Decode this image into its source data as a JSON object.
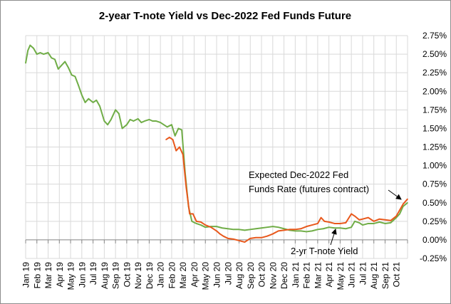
{
  "chart_data": {
    "type": "line",
    "title": "2-year T-note Yield vs Dec-2022 Fed Funds Future",
    "xlabel": "",
    "ylabel": "",
    "ylim": [
      -0.25,
      2.75
    ],
    "y_ticks": [
      "2.75%",
      "2.50%",
      "2.25%",
      "2.00%",
      "1.75%",
      "1.50%",
      "1.25%",
      "1.00%",
      "0.75%",
      "0.50%",
      "0.25%",
      "0.00%",
      "-0.25%"
    ],
    "y_tick_values": [
      2.75,
      2.5,
      2.25,
      2.0,
      1.75,
      1.5,
      1.25,
      1.0,
      0.75,
      0.5,
      0.25,
      0.0,
      -0.25
    ],
    "x_ticks": [
      "Jan 19",
      "Feb 19",
      "Mar 19",
      "Apr 19",
      "May 19",
      "Jun 19",
      "Jul 19",
      "Aug 19",
      "Sep 19",
      "Oct 19",
      "Nov 19",
      "Dec 19",
      "Jan 20",
      "Feb 20",
      "Mar 20",
      "Apr 20",
      "May 20",
      "Jun 20",
      "Jul 20",
      "Aug 20",
      "Sep 20",
      "Oct 20",
      "Nov 20",
      "Dec 20",
      "Jan 21",
      "Feb 21",
      "Mar 21",
      "Apr 21",
      "May 21",
      "Jun 21",
      "Jul 21",
      "Aug 21",
      "Sep 21",
      "Oct 21"
    ],
    "x_unit": "months since Jan 2019",
    "grid": true,
    "series": [
      {
        "name": "2-yr T-note Yield",
        "color": "#70ad47",
        "x": [
          0,
          0.2,
          0.4,
          0.7,
          1,
          1.3,
          1.6,
          2,
          2.3,
          2.6,
          2.9,
          3.2,
          3.5,
          3.8,
          4.1,
          4.4,
          4.7,
          5,
          5.3,
          5.6,
          6,
          6.3,
          6.6,
          7,
          7.3,
          7.6,
          8,
          8.3,
          8.6,
          9,
          9.3,
          9.6,
          10,
          10.3,
          10.6,
          11,
          11.3,
          11.6,
          12,
          12.3,
          12.6,
          13,
          13.3,
          13.6,
          13.9,
          14.2,
          14.5,
          14.8,
          15.2,
          15.6,
          16,
          16.5,
          17,
          17.5,
          18,
          18.5,
          19,
          19.5,
          20,
          20.5,
          21,
          21.5,
          22,
          22.5,
          23,
          23.5,
          24,
          24.5,
          25,
          25.5,
          26,
          26.5,
          27,
          27.5,
          28,
          28.5,
          29,
          29.3,
          29.7,
          30,
          30.5,
          31,
          31.5,
          32,
          32.5,
          33,
          33.3,
          33.6,
          34
        ],
        "values": [
          2.38,
          2.55,
          2.62,
          2.58,
          2.5,
          2.52,
          2.5,
          2.52,
          2.45,
          2.43,
          2.3,
          2.35,
          2.4,
          2.32,
          2.22,
          2.2,
          2.08,
          1.95,
          1.85,
          1.9,
          1.85,
          1.88,
          1.8,
          1.6,
          1.55,
          1.62,
          1.75,
          1.7,
          1.5,
          1.55,
          1.62,
          1.6,
          1.63,
          1.58,
          1.6,
          1.62,
          1.6,
          1.6,
          1.58,
          1.55,
          1.52,
          1.55,
          1.4,
          1.5,
          1.48,
          0.9,
          0.45,
          0.25,
          0.22,
          0.2,
          0.17,
          0.18,
          0.18,
          0.16,
          0.15,
          0.14,
          0.14,
          0.13,
          0.14,
          0.15,
          0.16,
          0.17,
          0.18,
          0.17,
          0.15,
          0.13,
          0.12,
          0.12,
          0.11,
          0.12,
          0.14,
          0.15,
          0.17,
          0.16,
          0.16,
          0.15,
          0.17,
          0.25,
          0.23,
          0.2,
          0.22,
          0.22,
          0.24,
          0.22,
          0.23,
          0.3,
          0.35,
          0.45,
          0.5
        ]
      },
      {
        "name": "Expected Dec-2022 Fed Funds Rate (futures contract)",
        "color": "#e8581c",
        "x": [
          12.5,
          12.8,
          13.1,
          13.4,
          13.7,
          14,
          14.3,
          14.6,
          14.9,
          15.2,
          15.6,
          16,
          16.5,
          17,
          17.3,
          17.6,
          18,
          18.5,
          19,
          19.5,
          20,
          20.5,
          21,
          21.5,
          22,
          22.5,
          23,
          23.5,
          24,
          24.5,
          25,
          25.5,
          26,
          26.3,
          26.6,
          27,
          27.5,
          28,
          28.5,
          29,
          29.3,
          29.7,
          30,
          30.5,
          31,
          31.5,
          32,
          32.5,
          33,
          33.3,
          33.6,
          34
        ],
        "values": [
          1.35,
          1.38,
          1.35,
          1.2,
          1.25,
          1.15,
          0.7,
          0.35,
          0.35,
          0.25,
          0.24,
          0.2,
          0.17,
          0.12,
          0.08,
          0.05,
          0.02,
          0.01,
          -0.01,
          -0.03,
          0.02,
          0.03,
          0.03,
          0.05,
          0.08,
          0.12,
          0.13,
          0.14,
          0.14,
          0.15,
          0.18,
          0.2,
          0.22,
          0.3,
          0.25,
          0.24,
          0.22,
          0.22,
          0.23,
          0.35,
          0.32,
          0.27,
          0.28,
          0.3,
          0.25,
          0.28,
          0.27,
          0.26,
          0.32,
          0.4,
          0.48,
          0.55
        ]
      }
    ],
    "annotations": [
      {
        "text_lines": [
          "Expected Dec-2022 Fed",
          "Funds Rate (futures contract)"
        ],
        "points_to": "Expected Dec-2022 Fed Funds Rate (futures contract)"
      },
      {
        "text_lines": [
          "2-yr T-note Yield"
        ],
        "points_to": "2-yr T-note Yield"
      }
    ],
    "legend": "none"
  }
}
